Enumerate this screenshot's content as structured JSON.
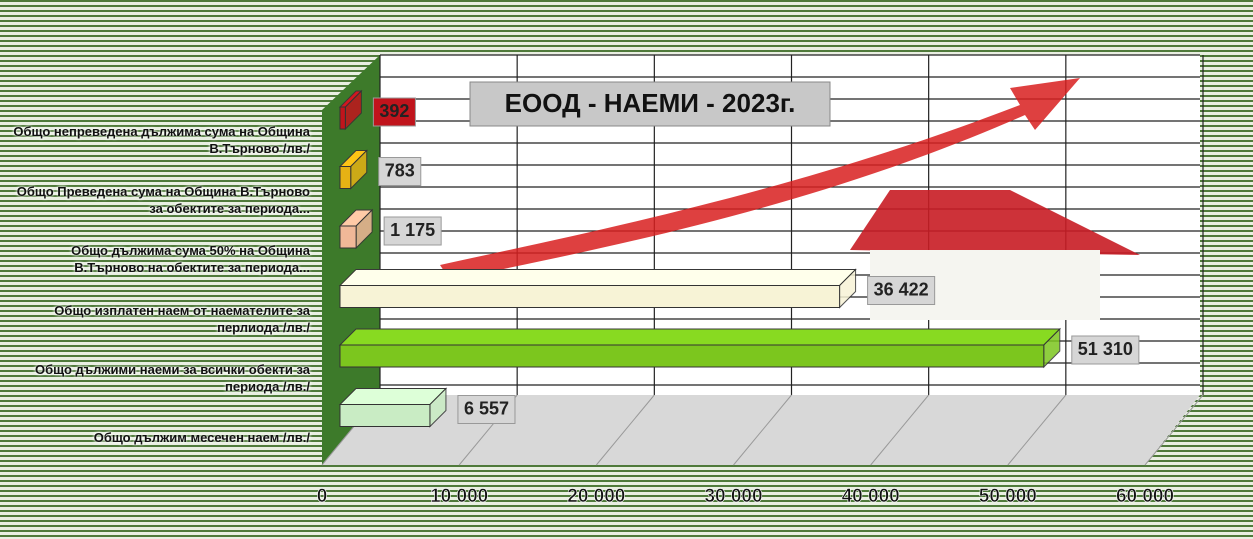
{
  "chart_data": {
    "type": "bar3d-horizontal",
    "title": "ЕООД - НАЕМИ - 2023г.",
    "categories": [
      "Общо непреведена дължима сума на Община В.Търново /лв./",
      "Общо Преведена сума на Община В.Търново за обектите за периода...",
      "Общо дължима сума 50% на Община В.Търново на обектите за периода...",
      "Общо изплатен наем от наемателите за перлиода /лв./",
      "Общо дължими наеми за всички обекти за периода /лв./",
      "Общо дължим месечен наем /лв./"
    ],
    "values": [
      392,
      783,
      1175,
      36422,
      51310,
      6557
    ],
    "value_labels": [
      "392",
      "783",
      "1 175",
      "36 422",
      "51 310",
      "6 557"
    ],
    "colors": [
      "#c0141c",
      "#e6b214",
      "#f0b898",
      "#f7f3d6",
      "#7cc61e",
      "#c9ecc4"
    ],
    "xlim": [
      0,
      60000
    ],
    "xticks": [
      0,
      {
        "value": 10000,
        "label": "10 000"
      },
      {
        "value": 20000,
        "label": "20 000"
      },
      {
        "value": 30000,
        "label": "30 000"
      },
      {
        "value": 40000,
        "label": "40 000"
      },
      {
        "value": 50000,
        "label": "50 000"
      },
      {
        "value": 60000,
        "label": "60 000"
      }
    ],
    "grid": true
  }
}
